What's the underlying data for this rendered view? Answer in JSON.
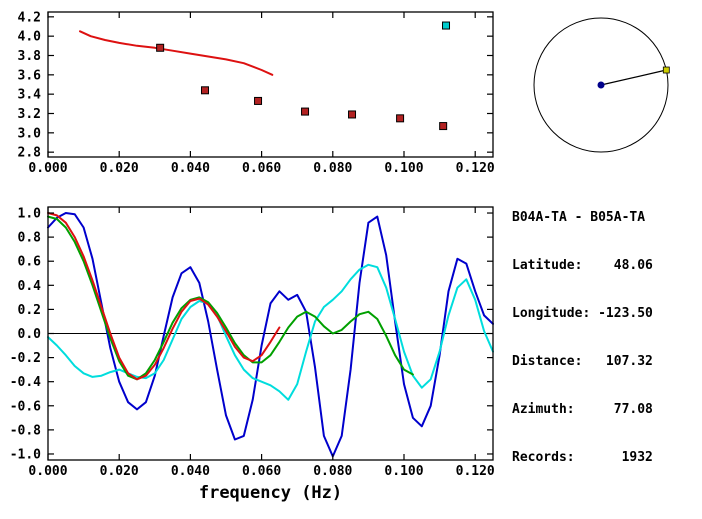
{
  "colors": {
    "background": "#ffffff",
    "axis": "#000000",
    "red_curve": "#dd1111",
    "marker_red": "#b22222",
    "marker_cyan": "#00cccc",
    "blue_curve": "#0000cc",
    "cyan_curve": "#00dddd",
    "green_curve": "#00a000",
    "station_dot": "#00008b",
    "azimuth_marker": "#cccc00"
  },
  "info_panel": {
    "lines": [
      "B04A-TA - B05A-TA",
      "Latitude:    48.06",
      "Longitude: -123.50",
      "Distance:   107.32",
      "Azimuth:     77.08",
      "Records:      1932"
    ]
  },
  "azimuth_diagram": {
    "azimuth_deg": 77.08,
    "station_color": "#00008b",
    "marker_color": "#cccc00",
    "marker_shape": "square"
  },
  "chart_data": [
    {
      "id": "dispersion-panel",
      "type": "line+scatter",
      "title": "",
      "xlabel": "",
      "ylabel": "",
      "grid": false,
      "xlim": [
        0,
        0.125
      ],
      "ylim": [
        2.75,
        4.25
      ],
      "xticks": {
        "values": [
          0,
          0.02,
          0.04,
          0.06,
          0.08,
          0.1,
          0.12
        ],
        "labels": [
          "0.000",
          "0.020",
          "0.040",
          "0.060",
          "0.080",
          "0.100",
          "0.120"
        ]
      },
      "yticks": {
        "values": [
          2.8,
          3.0,
          3.2,
          3.4,
          3.6,
          3.8,
          4.0,
          4.2
        ],
        "labels": [
          "2.8",
          "3.0",
          "3.2",
          "3.4",
          "3.6",
          "3.8",
          "4.0",
          "4.2"
        ]
      },
      "series": [
        {
          "name": "dispersion-curve",
          "color": "#dd1111",
          "width": 2,
          "x": [
            0.009,
            0.012,
            0.016,
            0.02,
            0.025,
            0.03,
            0.035,
            0.04,
            0.045,
            0.05,
            0.055,
            0.06,
            0.063
          ],
          "y": [
            4.05,
            4.0,
            3.96,
            3.93,
            3.9,
            3.88,
            3.85,
            3.82,
            3.79,
            3.76,
            3.72,
            3.65,
            3.6
          ]
        }
      ],
      "markers": [
        {
          "name": "group-velocity-pick",
          "shape": "square",
          "size": 7,
          "color": "#b22222",
          "edge": "#000000",
          "points": [
            [
              0.0315,
              3.88
            ],
            [
              0.0441,
              3.44
            ],
            [
              0.059,
              3.33
            ],
            [
              0.0722,
              3.22
            ],
            [
              0.0854,
              3.19
            ],
            [
              0.0989,
              3.15
            ],
            [
              0.111,
              3.07
            ]
          ]
        },
        {
          "name": "active-pick",
          "shape": "square",
          "size": 7,
          "color": "#00cccc",
          "edge": "#000000",
          "points": [
            [
              0.1118,
              4.11
            ]
          ]
        }
      ]
    },
    {
      "id": "spectra-panel",
      "type": "line",
      "title": "",
      "xlabel": "frequency (Hz)",
      "ylabel": "",
      "grid": false,
      "hlines": [
        0
      ],
      "xlim": [
        0,
        0.125
      ],
      "ylim": [
        -1.05,
        1.05
      ],
      "xticks": {
        "values": [
          0,
          0.02,
          0.04,
          0.06,
          0.08,
          0.1,
          0.12
        ],
        "labels": [
          "0.000",
          "0.020",
          "0.040",
          "0.060",
          "0.080",
          "0.100",
          "0.120"
        ]
      },
      "yticks": {
        "values": [
          -1.0,
          -0.8,
          -0.6,
          -0.4,
          -0.2,
          0.0,
          0.2,
          0.4,
          0.6,
          0.8,
          1.0
        ],
        "labels": [
          "-1.0",
          "-0.8",
          "-0.6",
          "-0.4",
          "-0.2",
          "0.0",
          "0.2",
          "0.4",
          "0.6",
          "0.8",
          "1.0"
        ]
      },
      "series": [
        {
          "name": "blue-trace",
          "color": "#0000cc",
          "width": 2,
          "x0": 0,
          "dx": 0.0025,
          "y": [
            0.88,
            0.96,
            1.0,
            0.99,
            0.88,
            0.62,
            0.25,
            -0.12,
            -0.4,
            -0.57,
            -0.63,
            -0.57,
            -0.35,
            -0.02,
            0.3,
            0.5,
            0.55,
            0.42,
            0.1,
            -0.3,
            -0.68,
            -0.88,
            -0.85,
            -0.55,
            -0.1,
            0.25,
            0.35,
            0.28,
            0.32,
            0.18,
            -0.28,
            -0.85,
            -1.02,
            -0.85,
            -0.3,
            0.42,
            0.92,
            0.97,
            0.65,
            0.1,
            -0.42,
            -0.7,
            -0.77,
            -0.6,
            -0.18,
            0.35,
            0.62,
            0.58,
            0.35,
            0.15,
            0.08
          ]
        },
        {
          "name": "cyan-trace",
          "color": "#00dddd",
          "width": 2,
          "x0": 0,
          "dx": 0.0025,
          "y": [
            -0.03,
            -0.1,
            -0.18,
            -0.27,
            -0.33,
            -0.36,
            -0.35,
            -0.32,
            -0.3,
            -0.33,
            -0.36,
            -0.37,
            -0.33,
            -0.22,
            -0.05,
            0.12,
            0.22,
            0.27,
            0.25,
            0.15,
            -0.02,
            -0.18,
            -0.3,
            -0.37,
            -0.4,
            -0.43,
            -0.48,
            -0.55,
            -0.42,
            -0.15,
            0.1,
            0.22,
            0.28,
            0.35,
            0.45,
            0.53,
            0.57,
            0.55,
            0.38,
            0.12,
            -0.15,
            -0.35,
            -0.45,
            -0.38,
            -0.15,
            0.15,
            0.38,
            0.45,
            0.28,
            0.02,
            -0.15
          ]
        },
        {
          "name": "green-trace",
          "color": "#00a000",
          "width": 2,
          "x0": 0,
          "dx": 0.0025,
          "y": [
            0.97,
            0.95,
            0.88,
            0.76,
            0.6,
            0.4,
            0.18,
            -0.04,
            -0.23,
            -0.35,
            -0.38,
            -0.33,
            -0.22,
            -0.07,
            0.09,
            0.21,
            0.28,
            0.3,
            0.26,
            0.17,
            0.05,
            -0.08,
            -0.18,
            -0.24,
            -0.24,
            -0.18,
            -0.07,
            0.05,
            0.14,
            0.18,
            0.14,
            0.06,
            0.0,
            0.03,
            0.1,
            0.16,
            0.18,
            0.12,
            -0.02,
            -0.18,
            -0.3,
            -0.34
          ]
        },
        {
          "name": "red-trace",
          "color": "#dd1111",
          "width": 2,
          "x0": 0,
          "dx": 0.0025,
          "y": [
            1.0,
            0.98,
            0.92,
            0.8,
            0.64,
            0.44,
            0.22,
            0.0,
            -0.2,
            -0.33,
            -0.38,
            -0.35,
            -0.26,
            -0.12,
            0.04,
            0.18,
            0.27,
            0.29,
            0.24,
            0.14,
            0.02,
            -0.11,
            -0.2,
            -0.23,
            -0.18,
            -0.07,
            0.05
          ]
        }
      ]
    }
  ]
}
